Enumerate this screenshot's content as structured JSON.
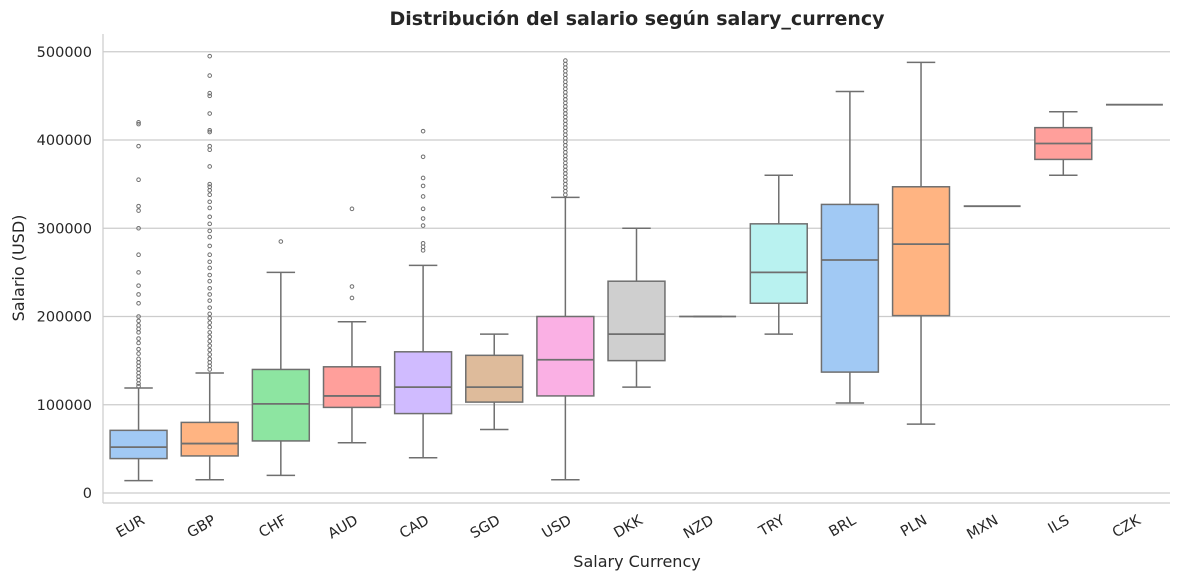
{
  "chart_data": {
    "type": "box",
    "title": "Distribución del salario según salary_currency",
    "xlabel": "Salary Currency",
    "ylabel": "Salario (USD)",
    "ylim": [
      -10000,
      520000
    ],
    "yticks": [
      0,
      100000,
      200000,
      300000,
      400000,
      500000
    ],
    "ytick_labels": [
      "0",
      "100000",
      "200000",
      "300000",
      "400000",
      "500000"
    ],
    "grid": "horizontal",
    "categories": [
      "EUR",
      "GBP",
      "CHF",
      "AUD",
      "CAD",
      "SGD",
      "USD",
      "DKK",
      "NZD",
      "TRY",
      "BRL",
      "PLN",
      "MXN",
      "ILS",
      "CZK"
    ],
    "boxes": [
      {
        "category": "EUR",
        "color": "#a1c9f4",
        "whislo": 14000,
        "q1": 39000,
        "med": 52000,
        "q3": 71000,
        "whishi": 119000,
        "fliers": [
          420000,
          418000,
          393000,
          355000,
          325000,
          320000,
          300000,
          270000,
          250000,
          235000,
          225000,
          215000,
          200000,
          195000,
          190000,
          186000,
          182000,
          175000,
          170000,
          163000,
          158000,
          152000,
          148000,
          144000,
          140000,
          136000,
          132000,
          128000,
          124000,
          121000
        ]
      },
      {
        "category": "GBP",
        "color": "#ffb482",
        "whislo": 15000,
        "q1": 42000,
        "med": 56000,
        "q3": 80000,
        "whishi": 136000,
        "fliers": [
          495000,
          473000,
          453000,
          450000,
          430000,
          411000,
          409000,
          393000,
          389000,
          370000,
          350000,
          347000,
          343000,
          338000,
          330000,
          323000,
          313000,
          305000,
          297000,
          290000,
          280000,
          270000,
          262000,
          255000,
          247000,
          240000,
          232000,
          225000,
          218000,
          210000,
          203000,
          198000,
          193000,
          188000,
          182000,
          177000,
          172000,
          167000,
          162000,
          157000,
          152000,
          148000,
          144000,
          140000
        ]
      },
      {
        "category": "CHF",
        "color": "#8de5a1",
        "whislo": 20000,
        "q1": 59000,
        "med": 101000,
        "q3": 140000,
        "whishi": 250000,
        "fliers": [
          285000
        ]
      },
      {
        "category": "AUD",
        "color": "#ff9f9b",
        "whislo": 57000,
        "q1": 97000,
        "med": 110000,
        "q3": 143000,
        "whishi": 194000,
        "fliers": [
          322000,
          234000,
          221000
        ]
      },
      {
        "category": "CAD",
        "color": "#d0bbff",
        "whislo": 40000,
        "q1": 90000,
        "med": 120000,
        "q3": 160000,
        "whishi": 258000,
        "fliers": [
          410000,
          381000,
          357000,
          348000,
          336000,
          322000,
          311000,
          303000,
          283000,
          279000,
          275000
        ]
      },
      {
        "category": "SGD",
        "color": "#debb9b",
        "whislo": 72000,
        "q1": 103000,
        "med": 120000,
        "q3": 156000,
        "whishi": 180000,
        "fliers": []
      },
      {
        "category": "USD",
        "color": "#fab0e4",
        "whislo": 15000,
        "q1": 110000,
        "med": 151000,
        "q3": 200000,
        "whishi": 335000,
        "fliers": [
          490000,
          486000,
          482000,
          478000,
          474000,
          470000,
          466000,
          462000,
          458000,
          454000,
          450000,
          446000,
          442000,
          438000,
          434000,
          430000,
          426000,
          422000,
          418000,
          414000,
          410000,
          406000,
          402000,
          398000,
          394000,
          390000,
          386000,
          382000,
          378000,
          374000,
          370000,
          366000,
          362000,
          358000,
          354000,
          350000,
          346000,
          342000,
          338000
        ]
      },
      {
        "category": "DKK",
        "color": "#cfcfcf",
        "whislo": 120000,
        "q1": 150000,
        "med": 180000,
        "q3": 240000,
        "whishi": 300000,
        "fliers": []
      },
      {
        "category": "NZD",
        "color": "#fffea3",
        "whislo": 200000,
        "q1": 200000,
        "med": 200000,
        "q3": 200000,
        "whishi": 200000,
        "fliers": []
      },
      {
        "category": "TRY",
        "color": "#b9f2f0",
        "whislo": 180000,
        "q1": 215000,
        "med": 250000,
        "q3": 305000,
        "whishi": 360000,
        "fliers": []
      },
      {
        "category": "BRL",
        "color": "#a1c9f4",
        "whislo": 102000,
        "q1": 137000,
        "med": 264000,
        "q3": 327000,
        "whishi": 455000,
        "fliers": []
      },
      {
        "category": "PLN",
        "color": "#ffb482",
        "whislo": 78000,
        "q1": 201000,
        "med": 282000,
        "q3": 347000,
        "whishi": 488000,
        "fliers": []
      },
      {
        "category": "MXN",
        "color": "#8de5a1",
        "whislo": 325000,
        "q1": 325000,
        "med": 325000,
        "q3": 325000,
        "whishi": 325000,
        "fliers": []
      },
      {
        "category": "ILS",
        "color": "#ff9f9b",
        "whislo": 360000,
        "q1": 378000,
        "med": 396000,
        "q3": 414000,
        "whishi": 432000,
        "fliers": []
      },
      {
        "category": "CZK",
        "color": "#d0bbff",
        "whislo": 440000,
        "q1": 440000,
        "med": 440000,
        "q3": 440000,
        "whishi": 440000,
        "fliers": []
      }
    ]
  }
}
